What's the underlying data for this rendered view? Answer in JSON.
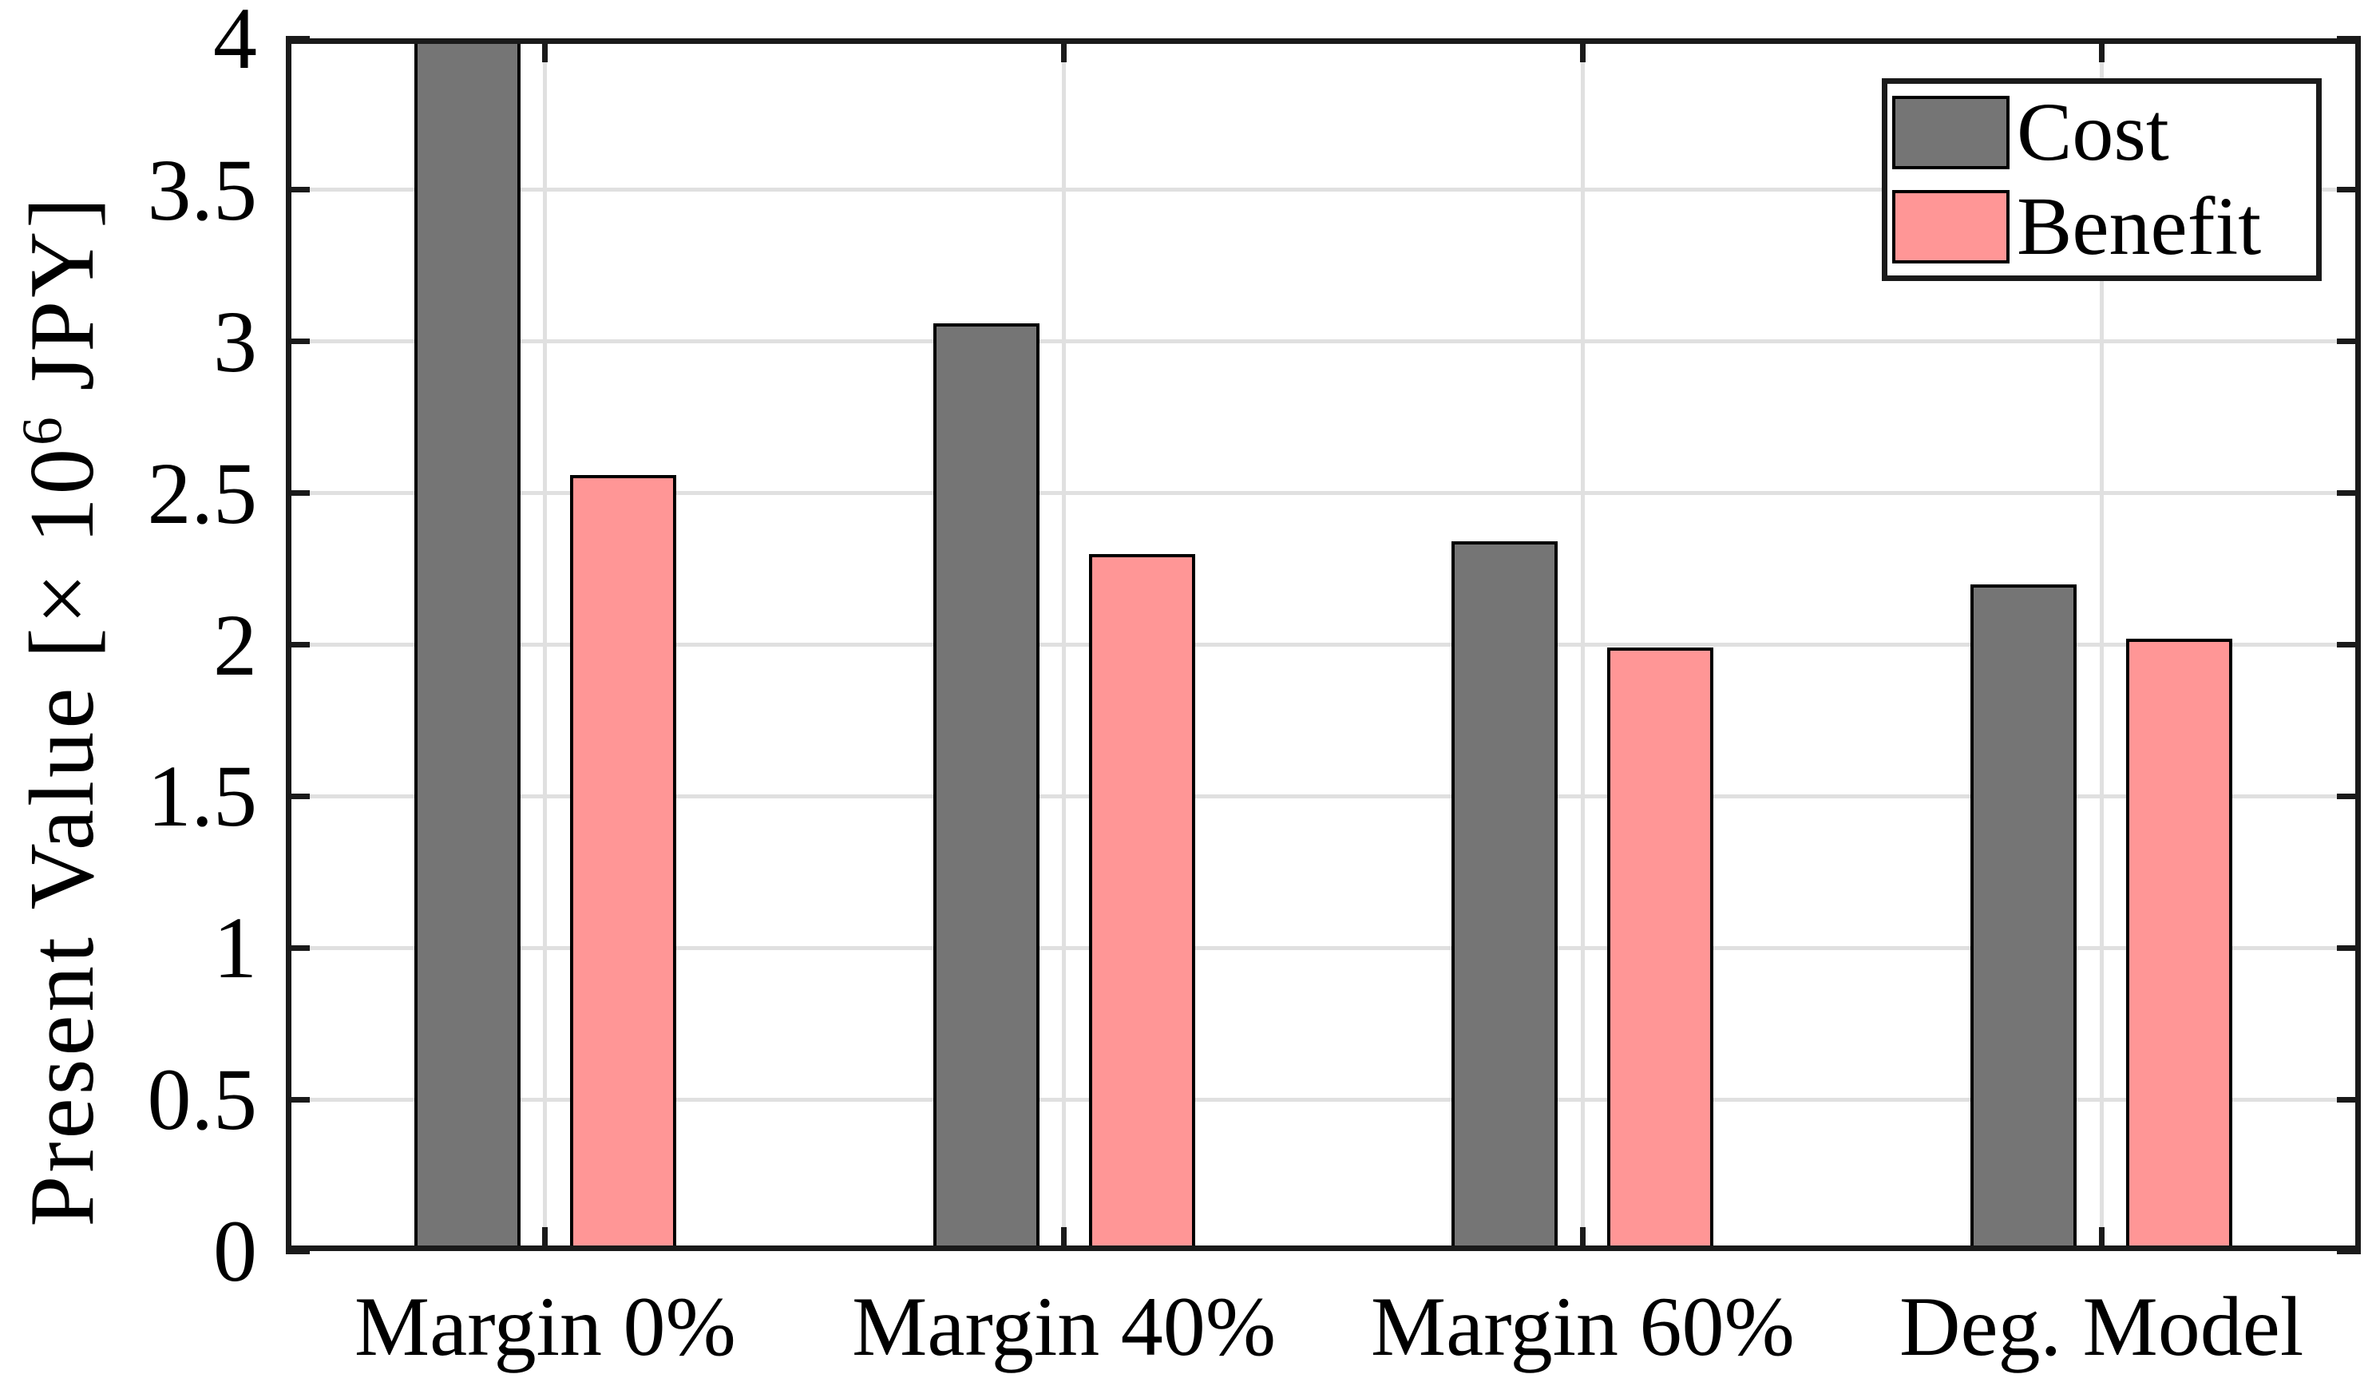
{
  "figure": {
    "background": "#FFFFFF"
  },
  "chart_data": {
    "type": "bar",
    "title": "",
    "categories": [
      "Margin 0%",
      "Margin 40%",
      "Margin 60%",
      "Deg. Model"
    ],
    "series": [
      {
        "name": "Cost",
        "color": "#757575",
        "edge_color": "#000000",
        "values": [
          4.0,
          3.06,
          2.34,
          2.2
        ],
        "clipped_at_ymax": [
          true,
          false,
          false,
          false
        ]
      },
      {
        "name": "Benefit",
        "color": "#FF9696",
        "edge_color": "#000000",
        "values": [
          2.56,
          2.3,
          1.99,
          2.02
        ],
        "clipped_at_ymax": [
          false,
          false,
          false,
          false
        ]
      }
    ],
    "xlabel": "",
    "ylabel_text": "Present Value [× 10⁶ JPY]",
    "ylabel_prefix": "Present Value [× 10",
    "ylabel_sup": "6",
    "ylabel_suffix": " JPY]",
    "ylim": [
      0,
      4
    ],
    "yticks": [
      0,
      0.5,
      1,
      1.5,
      2,
      2.5,
      3,
      3.5,
      4
    ],
    "ytick_labels": [
      "0",
      "0.5",
      "1",
      "1.5",
      "2",
      "2.5",
      "3",
      "3.5",
      "4"
    ],
    "grid": true,
    "grid_color": "#E0E0E0",
    "axis_color": "#1A1A1A",
    "text_color": "#000000",
    "legend": {
      "position": "top-right",
      "entries": [
        "Cost",
        "Benefit"
      ]
    }
  }
}
